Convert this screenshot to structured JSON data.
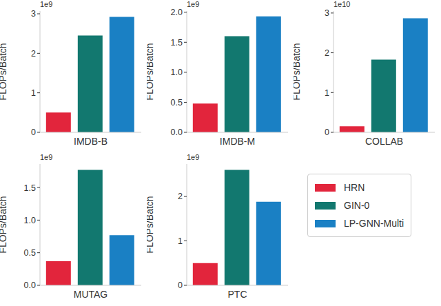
{
  "chart_data": [
    {
      "type": "bar",
      "categories": [
        "IMDB-B"
      ],
      "y_label": "FLOPs/Batch",
      "annotation": "1e9",
      "ylim": [
        0,
        3.07
      ],
      "yticks": [
        0,
        1,
        2,
        3
      ],
      "grid": false,
      "series": [
        {
          "name": "HRN",
          "color": "#e2253c",
          "values": [
            0.5
          ]
        },
        {
          "name": "GIN-0",
          "color": "#12786f",
          "values": [
            2.45
          ]
        },
        {
          "name": "LP-GNN-Multi",
          "color": "#1a80c4",
          "values": [
            2.92
          ]
        }
      ]
    },
    {
      "type": "bar",
      "categories": [
        "IMDB-M"
      ],
      "y_label": "FLOPs/Batch",
      "annotation": "1e9",
      "ylim": [
        0,
        2.02
      ],
      "yticks": [
        {
          "value": 0,
          "label": "0.0"
        },
        0.5,
        {
          "value": 1,
          "label": "1.0"
        },
        1.5,
        {
          "value": 2,
          "label": "2.0"
        }
      ],
      "grid": false,
      "series": [
        {
          "name": "HRN",
          "color": "#e2253c",
          "values": [
            0.48
          ]
        },
        {
          "name": "GIN-0",
          "color": "#12786f",
          "values": [
            1.6
          ]
        },
        {
          "name": "LP-GNN-Multi",
          "color": "#1a80c4",
          "values": [
            1.93
          ]
        }
      ]
    },
    {
      "type": "bar",
      "categories": [
        "COLLAB"
      ],
      "y_label": "FLOPs/Batch",
      "annotation": "1e10",
      "ylim": [
        0,
        3.05
      ],
      "yticks": [
        0,
        1,
        2,
        3
      ],
      "grid": false,
      "series": [
        {
          "name": "HRN",
          "color": "#e2253c",
          "values": [
            0.15
          ]
        },
        {
          "name": "GIN-0",
          "color": "#12786f",
          "values": [
            1.83
          ]
        },
        {
          "name": "LP-GNN-Multi",
          "color": "#1a80c4",
          "values": [
            2.87
          ]
        }
      ]
    },
    {
      "type": "bar",
      "categories": [
        "MUTAG"
      ],
      "y_label": "FLOPs/Batch",
      "annotation": "1e9",
      "ylim": [
        0,
        1.86
      ],
      "yticks": [
        {
          "value": 0,
          "label": "0.0"
        },
        0.5,
        {
          "value": 1,
          "label": "1.0"
        },
        1.5
      ],
      "grid": false,
      "series": [
        {
          "name": "HRN",
          "color": "#e2253c",
          "values": [
            0.37
          ]
        },
        {
          "name": "GIN-0",
          "color": "#12786f",
          "values": [
            1.77
          ]
        },
        {
          "name": "LP-GNN-Multi",
          "color": "#1a80c4",
          "values": [
            0.77
          ]
        }
      ]
    },
    {
      "type": "bar",
      "categories": [
        "PTC"
      ],
      "y_label": "FLOPs/Batch",
      "annotation": "1e9",
      "ylim": [
        0,
        2.73
      ],
      "yticks": [
        0,
        1,
        2
      ],
      "grid": false,
      "legend": "right",
      "series": [
        {
          "name": "HRN",
          "color": "#e2253c",
          "values": [
            0.5
          ]
        },
        {
          "name": "GIN-0",
          "color": "#12786f",
          "values": [
            2.6
          ]
        },
        {
          "name": "LP-GNN-Multi",
          "color": "#1a80c4",
          "values": [
            1.88
          ]
        }
      ]
    }
  ]
}
